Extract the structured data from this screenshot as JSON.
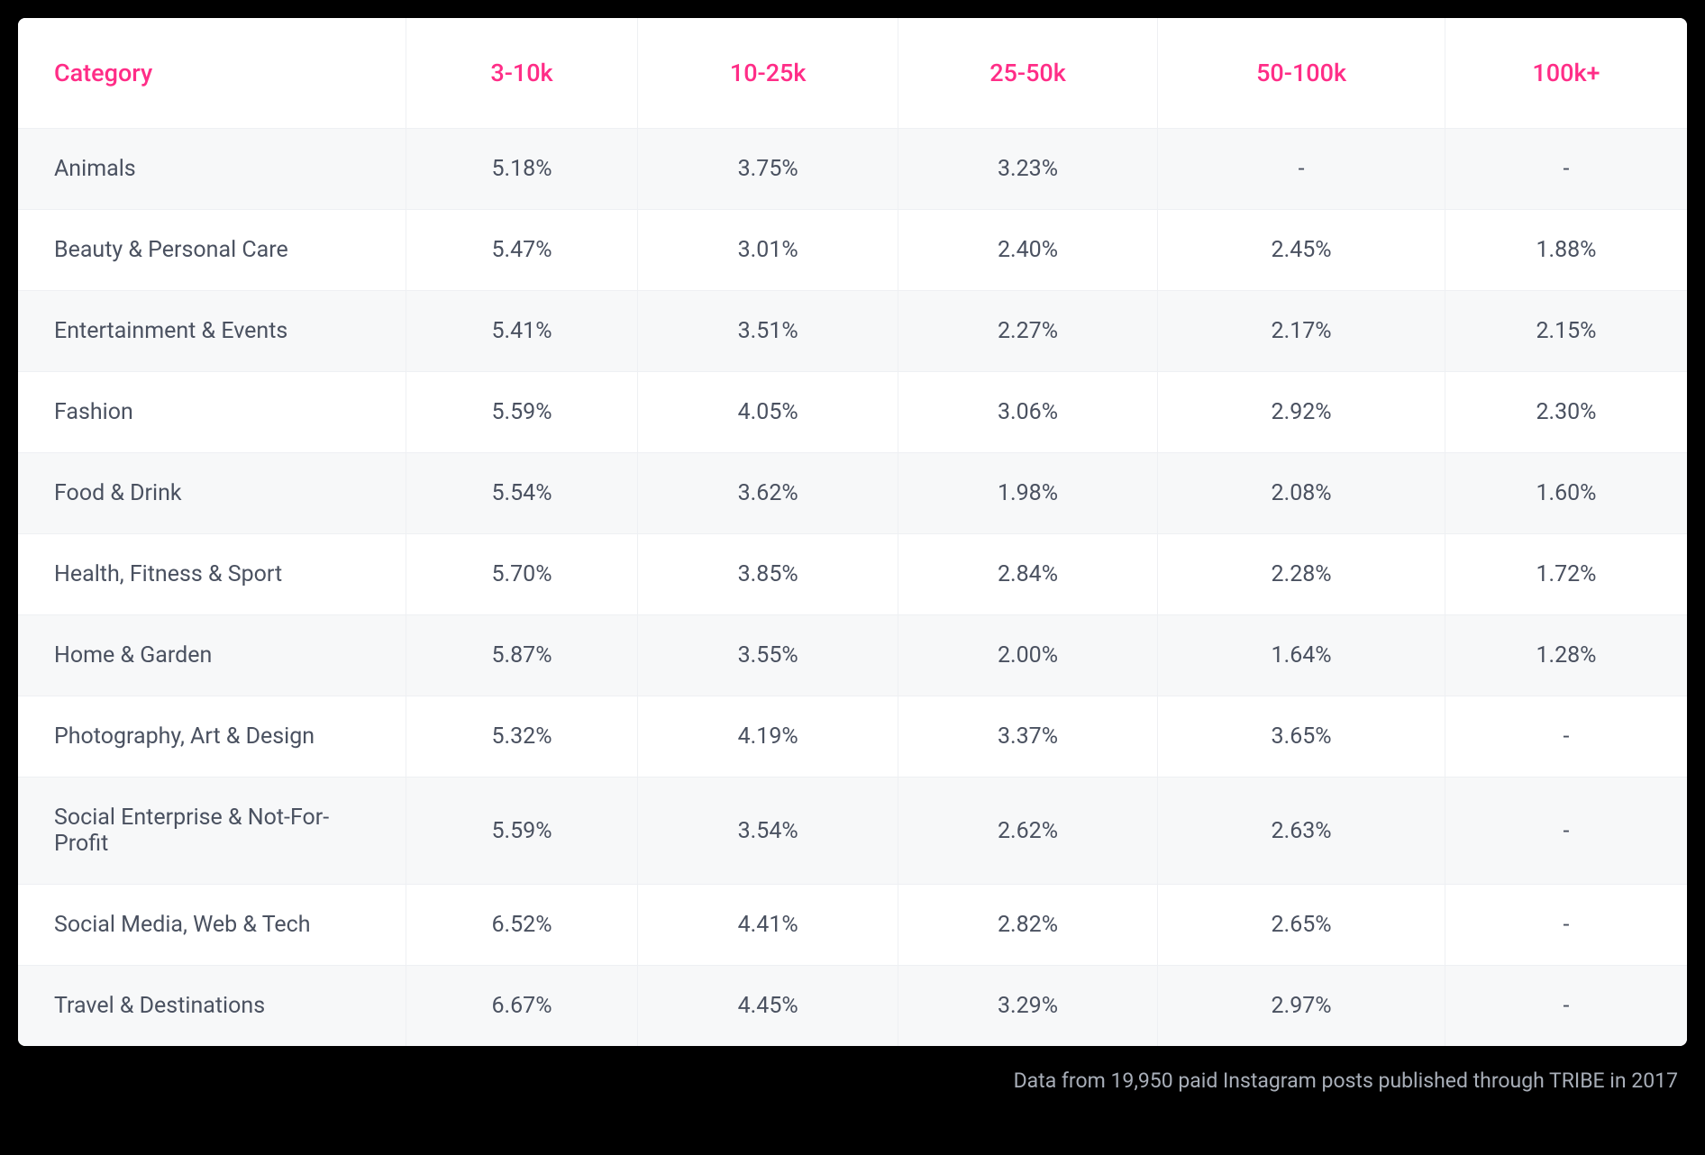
{
  "table": {
    "columns": [
      "Category",
      "3-10k",
      "10-25k",
      "25-50k",
      "50-100k",
      "100k+"
    ],
    "rows": [
      [
        "Animals",
        "5.18%",
        "3.75%",
        "3.23%",
        "-",
        "-"
      ],
      [
        "Beauty & Personal Care",
        "5.47%",
        "3.01%",
        "2.40%",
        "2.45%",
        "1.88%"
      ],
      [
        "Entertainment & Events",
        "5.41%",
        "3.51%",
        "2.27%",
        "2.17%",
        "2.15%"
      ],
      [
        "Fashion",
        "5.59%",
        "4.05%",
        "3.06%",
        "2.92%",
        "2.30%"
      ],
      [
        "Food & Drink",
        "5.54%",
        "3.62%",
        "1.98%",
        "2.08%",
        "1.60%"
      ],
      [
        "Health, Fitness & Sport",
        "5.70%",
        "3.85%",
        "2.84%",
        "2.28%",
        "1.72%"
      ],
      [
        "Home & Garden",
        "5.87%",
        "3.55%",
        "2.00%",
        "1.64%",
        "1.28%"
      ],
      [
        "Photography, Art & Design",
        "5.32%",
        "4.19%",
        "3.37%",
        "3.65%",
        "-"
      ],
      [
        "Social Enterprise & Not-For-Profit",
        "5.59%",
        "3.54%",
        "2.62%",
        "2.63%",
        "-"
      ],
      [
        "Social Media, Web & Tech",
        "6.52%",
        "4.41%",
        "2.82%",
        "2.65%",
        "-"
      ],
      [
        "Travel & Destinations",
        "6.67%",
        "4.45%",
        "3.29%",
        "2.97%",
        "-"
      ]
    ]
  },
  "footer_note": "Data from 19,950 paid Instagram posts published through TRIBE in 2017",
  "styling": {
    "header_color": "#ff2d87",
    "body_text_color": "#4a5160",
    "row_alt_bg": "#f7f8f9",
    "row_bg": "#ffffff",
    "border_color": "#eef0f3",
    "header_fontsize": 27,
    "body_fontsize": 25,
    "footer_fontsize": 23,
    "footer_color": "#a8aeb8",
    "page_bg": "#000000",
    "first_col_width": 430
  }
}
